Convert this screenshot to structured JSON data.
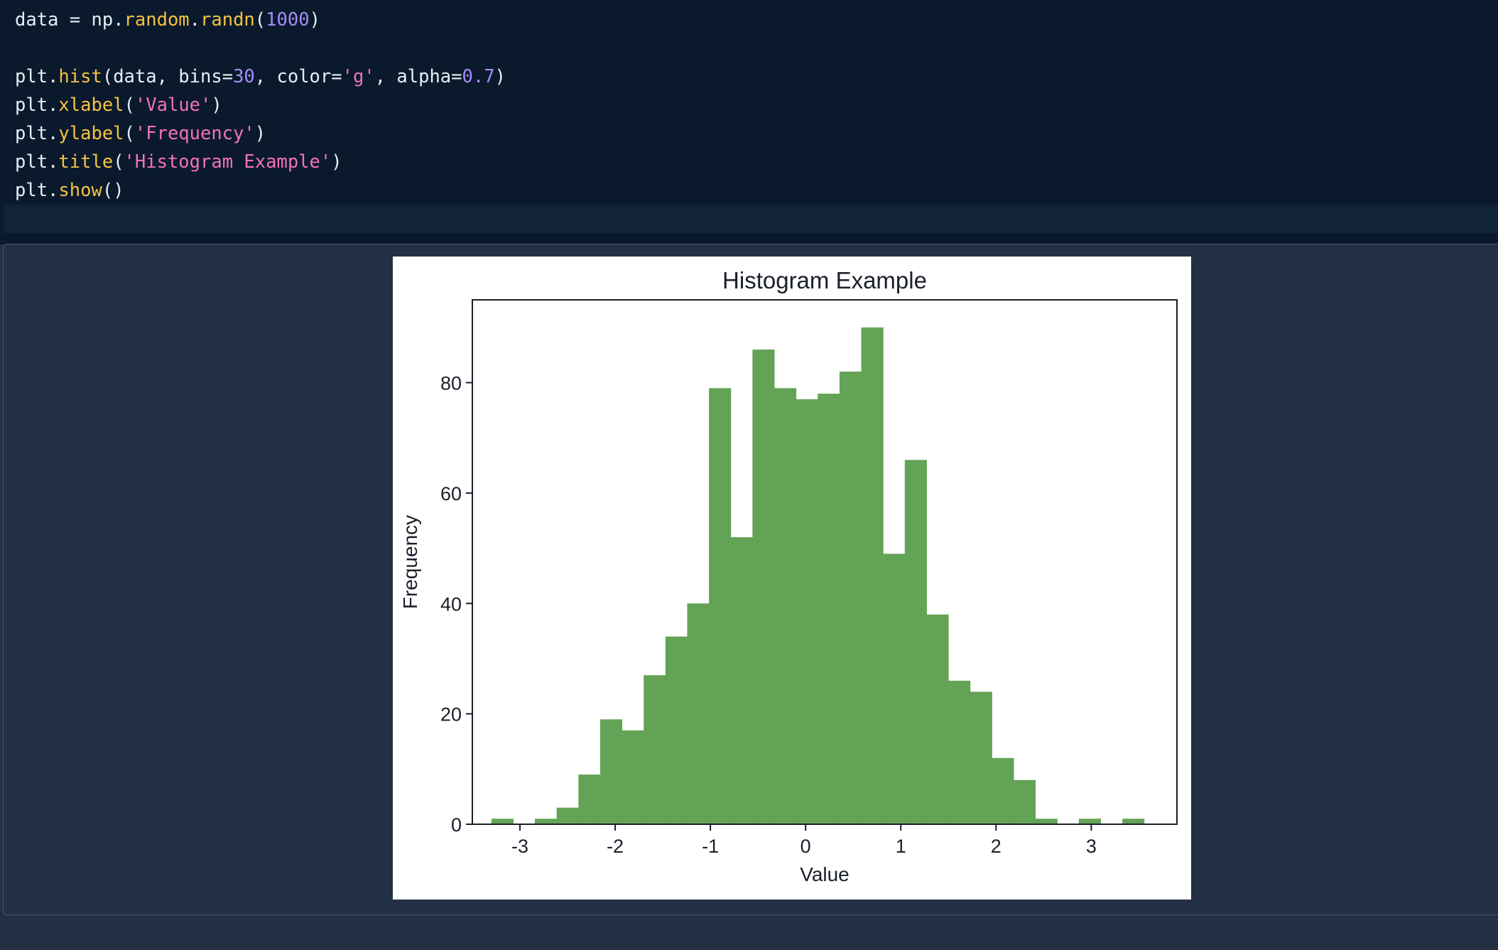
{
  "editor": {
    "lines": [
      [
        {
          "t": "data = np.",
          "c": "ident"
        },
        {
          "t": "random",
          "c": "fn"
        },
        {
          "t": ".",
          "c": "ident"
        },
        {
          "t": "randn",
          "c": "fn"
        },
        {
          "t": "(",
          "c": "ident"
        },
        {
          "t": "1000",
          "c": "num"
        },
        {
          "t": ")",
          "c": "ident"
        }
      ],
      [],
      [
        {
          "t": "plt.",
          "c": "ident"
        },
        {
          "t": "hist",
          "c": "fn"
        },
        {
          "t": "(data, bins=",
          "c": "ident"
        },
        {
          "t": "30",
          "c": "num"
        },
        {
          "t": ", color=",
          "c": "ident"
        },
        {
          "t": "'g'",
          "c": "str"
        },
        {
          "t": ", alpha=",
          "c": "ident"
        },
        {
          "t": "0.7",
          "c": "num"
        },
        {
          "t": ")",
          "c": "ident"
        }
      ],
      [
        {
          "t": "plt.",
          "c": "ident"
        },
        {
          "t": "xlabel",
          "c": "fn"
        },
        {
          "t": "(",
          "c": "ident"
        },
        {
          "t": "'Value'",
          "c": "str"
        },
        {
          "t": ")",
          "c": "ident"
        }
      ],
      [
        {
          "t": "plt.",
          "c": "ident"
        },
        {
          "t": "ylabel",
          "c": "fn"
        },
        {
          "t": "(",
          "c": "ident"
        },
        {
          "t": "'Frequency'",
          "c": "str"
        },
        {
          "t": ")",
          "c": "ident"
        }
      ],
      [
        {
          "t": "plt.",
          "c": "ident"
        },
        {
          "t": "title",
          "c": "fn"
        },
        {
          "t": "(",
          "c": "ident"
        },
        {
          "t": "'Histogram Example'",
          "c": "str"
        },
        {
          "t": ")",
          "c": "ident"
        }
      ],
      [
        {
          "t": "plt.",
          "c": "ident"
        },
        {
          "t": "show",
          "c": "fn"
        },
        {
          "t": "()",
          "c": "ident"
        }
      ]
    ]
  },
  "chart_data": {
    "type": "bar",
    "title": "Histogram Example",
    "xlabel": "Value",
    "ylabel": "Frequency",
    "bar_color": "#63a355",
    "xlim": [
      -3.5,
      3.9
    ],
    "ylim": [
      0,
      95
    ],
    "xticks": [
      -3,
      -2,
      -1,
      0,
      1,
      2,
      3
    ],
    "xtick_labels": [
      "-3",
      "-2",
      "-1",
      "0",
      "1",
      "2",
      "3"
    ],
    "yticks": [
      0,
      20,
      40,
      60,
      80
    ],
    "ytick_labels": [
      "0",
      "20",
      "40",
      "60",
      "80"
    ],
    "bin_start": -3.3,
    "bin_width": 0.2285,
    "values": [
      1,
      0,
      1,
      3,
      9,
      19,
      17,
      27,
      34,
      40,
      79,
      52,
      86,
      79,
      77,
      78,
      82,
      90,
      49,
      66,
      38,
      26,
      24,
      12,
      8,
      1,
      0,
      1,
      0,
      1
    ]
  }
}
